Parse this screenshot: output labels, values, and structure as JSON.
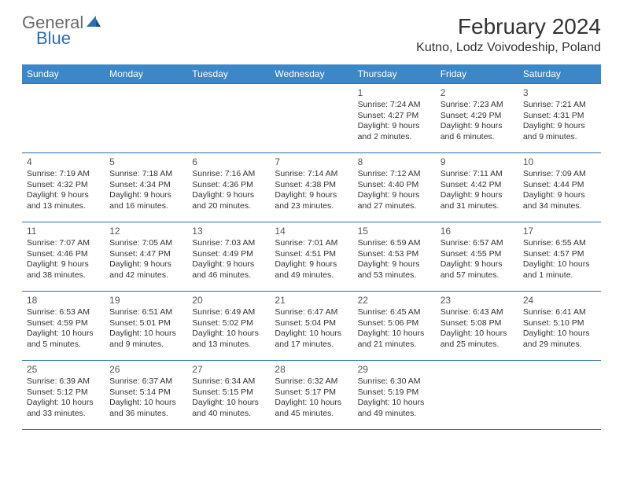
{
  "logo": {
    "word1": "General",
    "word2": "Blue"
  },
  "title": "February 2024",
  "location": "Kutno, Lodz Voivodeship, Poland",
  "headers": [
    "Sunday",
    "Monday",
    "Tuesday",
    "Wednesday",
    "Thursday",
    "Friday",
    "Saturday"
  ],
  "header_bg": "#3b87c8",
  "header_fg": "#ffffff",
  "border_color": "#2a6fb5",
  "text_color": "#333333",
  "weeks": [
    [
      null,
      null,
      null,
      null,
      {
        "n": "1",
        "sr": "Sunrise: 7:24 AM",
        "ss": "Sunset: 4:27 PM",
        "d1": "Daylight: 9 hours",
        "d2": "and 2 minutes."
      },
      {
        "n": "2",
        "sr": "Sunrise: 7:23 AM",
        "ss": "Sunset: 4:29 PM",
        "d1": "Daylight: 9 hours",
        "d2": "and 6 minutes."
      },
      {
        "n": "3",
        "sr": "Sunrise: 7:21 AM",
        "ss": "Sunset: 4:31 PM",
        "d1": "Daylight: 9 hours",
        "d2": "and 9 minutes."
      }
    ],
    [
      {
        "n": "4",
        "sr": "Sunrise: 7:19 AM",
        "ss": "Sunset: 4:32 PM",
        "d1": "Daylight: 9 hours",
        "d2": "and 13 minutes."
      },
      {
        "n": "5",
        "sr": "Sunrise: 7:18 AM",
        "ss": "Sunset: 4:34 PM",
        "d1": "Daylight: 9 hours",
        "d2": "and 16 minutes."
      },
      {
        "n": "6",
        "sr": "Sunrise: 7:16 AM",
        "ss": "Sunset: 4:36 PM",
        "d1": "Daylight: 9 hours",
        "d2": "and 20 minutes."
      },
      {
        "n": "7",
        "sr": "Sunrise: 7:14 AM",
        "ss": "Sunset: 4:38 PM",
        "d1": "Daylight: 9 hours",
        "d2": "and 23 minutes."
      },
      {
        "n": "8",
        "sr": "Sunrise: 7:12 AM",
        "ss": "Sunset: 4:40 PM",
        "d1": "Daylight: 9 hours",
        "d2": "and 27 minutes."
      },
      {
        "n": "9",
        "sr": "Sunrise: 7:11 AM",
        "ss": "Sunset: 4:42 PM",
        "d1": "Daylight: 9 hours",
        "d2": "and 31 minutes."
      },
      {
        "n": "10",
        "sr": "Sunrise: 7:09 AM",
        "ss": "Sunset: 4:44 PM",
        "d1": "Daylight: 9 hours",
        "d2": "and 34 minutes."
      }
    ],
    [
      {
        "n": "11",
        "sr": "Sunrise: 7:07 AM",
        "ss": "Sunset: 4:46 PM",
        "d1": "Daylight: 9 hours",
        "d2": "and 38 minutes."
      },
      {
        "n": "12",
        "sr": "Sunrise: 7:05 AM",
        "ss": "Sunset: 4:47 PM",
        "d1": "Daylight: 9 hours",
        "d2": "and 42 minutes."
      },
      {
        "n": "13",
        "sr": "Sunrise: 7:03 AM",
        "ss": "Sunset: 4:49 PM",
        "d1": "Daylight: 9 hours",
        "d2": "and 46 minutes."
      },
      {
        "n": "14",
        "sr": "Sunrise: 7:01 AM",
        "ss": "Sunset: 4:51 PM",
        "d1": "Daylight: 9 hours",
        "d2": "and 49 minutes."
      },
      {
        "n": "15",
        "sr": "Sunrise: 6:59 AM",
        "ss": "Sunset: 4:53 PM",
        "d1": "Daylight: 9 hours",
        "d2": "and 53 minutes."
      },
      {
        "n": "16",
        "sr": "Sunrise: 6:57 AM",
        "ss": "Sunset: 4:55 PM",
        "d1": "Daylight: 9 hours",
        "d2": "and 57 minutes."
      },
      {
        "n": "17",
        "sr": "Sunrise: 6:55 AM",
        "ss": "Sunset: 4:57 PM",
        "d1": "Daylight: 10 hours",
        "d2": "and 1 minute."
      }
    ],
    [
      {
        "n": "18",
        "sr": "Sunrise: 6:53 AM",
        "ss": "Sunset: 4:59 PM",
        "d1": "Daylight: 10 hours",
        "d2": "and 5 minutes."
      },
      {
        "n": "19",
        "sr": "Sunrise: 6:51 AM",
        "ss": "Sunset: 5:01 PM",
        "d1": "Daylight: 10 hours",
        "d2": "and 9 minutes."
      },
      {
        "n": "20",
        "sr": "Sunrise: 6:49 AM",
        "ss": "Sunset: 5:02 PM",
        "d1": "Daylight: 10 hours",
        "d2": "and 13 minutes."
      },
      {
        "n": "21",
        "sr": "Sunrise: 6:47 AM",
        "ss": "Sunset: 5:04 PM",
        "d1": "Daylight: 10 hours",
        "d2": "and 17 minutes."
      },
      {
        "n": "22",
        "sr": "Sunrise: 6:45 AM",
        "ss": "Sunset: 5:06 PM",
        "d1": "Daylight: 10 hours",
        "d2": "and 21 minutes."
      },
      {
        "n": "23",
        "sr": "Sunrise: 6:43 AM",
        "ss": "Sunset: 5:08 PM",
        "d1": "Daylight: 10 hours",
        "d2": "and 25 minutes."
      },
      {
        "n": "24",
        "sr": "Sunrise: 6:41 AM",
        "ss": "Sunset: 5:10 PM",
        "d1": "Daylight: 10 hours",
        "d2": "and 29 minutes."
      }
    ],
    [
      {
        "n": "25",
        "sr": "Sunrise: 6:39 AM",
        "ss": "Sunset: 5:12 PM",
        "d1": "Daylight: 10 hours",
        "d2": "and 33 minutes."
      },
      {
        "n": "26",
        "sr": "Sunrise: 6:37 AM",
        "ss": "Sunset: 5:14 PM",
        "d1": "Daylight: 10 hours",
        "d2": "and 36 minutes."
      },
      {
        "n": "27",
        "sr": "Sunrise: 6:34 AM",
        "ss": "Sunset: 5:15 PM",
        "d1": "Daylight: 10 hours",
        "d2": "and 40 minutes."
      },
      {
        "n": "28",
        "sr": "Sunrise: 6:32 AM",
        "ss": "Sunset: 5:17 PM",
        "d1": "Daylight: 10 hours",
        "d2": "and 45 minutes."
      },
      {
        "n": "29",
        "sr": "Sunrise: 6:30 AM",
        "ss": "Sunset: 5:19 PM",
        "d1": "Daylight: 10 hours",
        "d2": "and 49 minutes."
      },
      null,
      null
    ]
  ]
}
